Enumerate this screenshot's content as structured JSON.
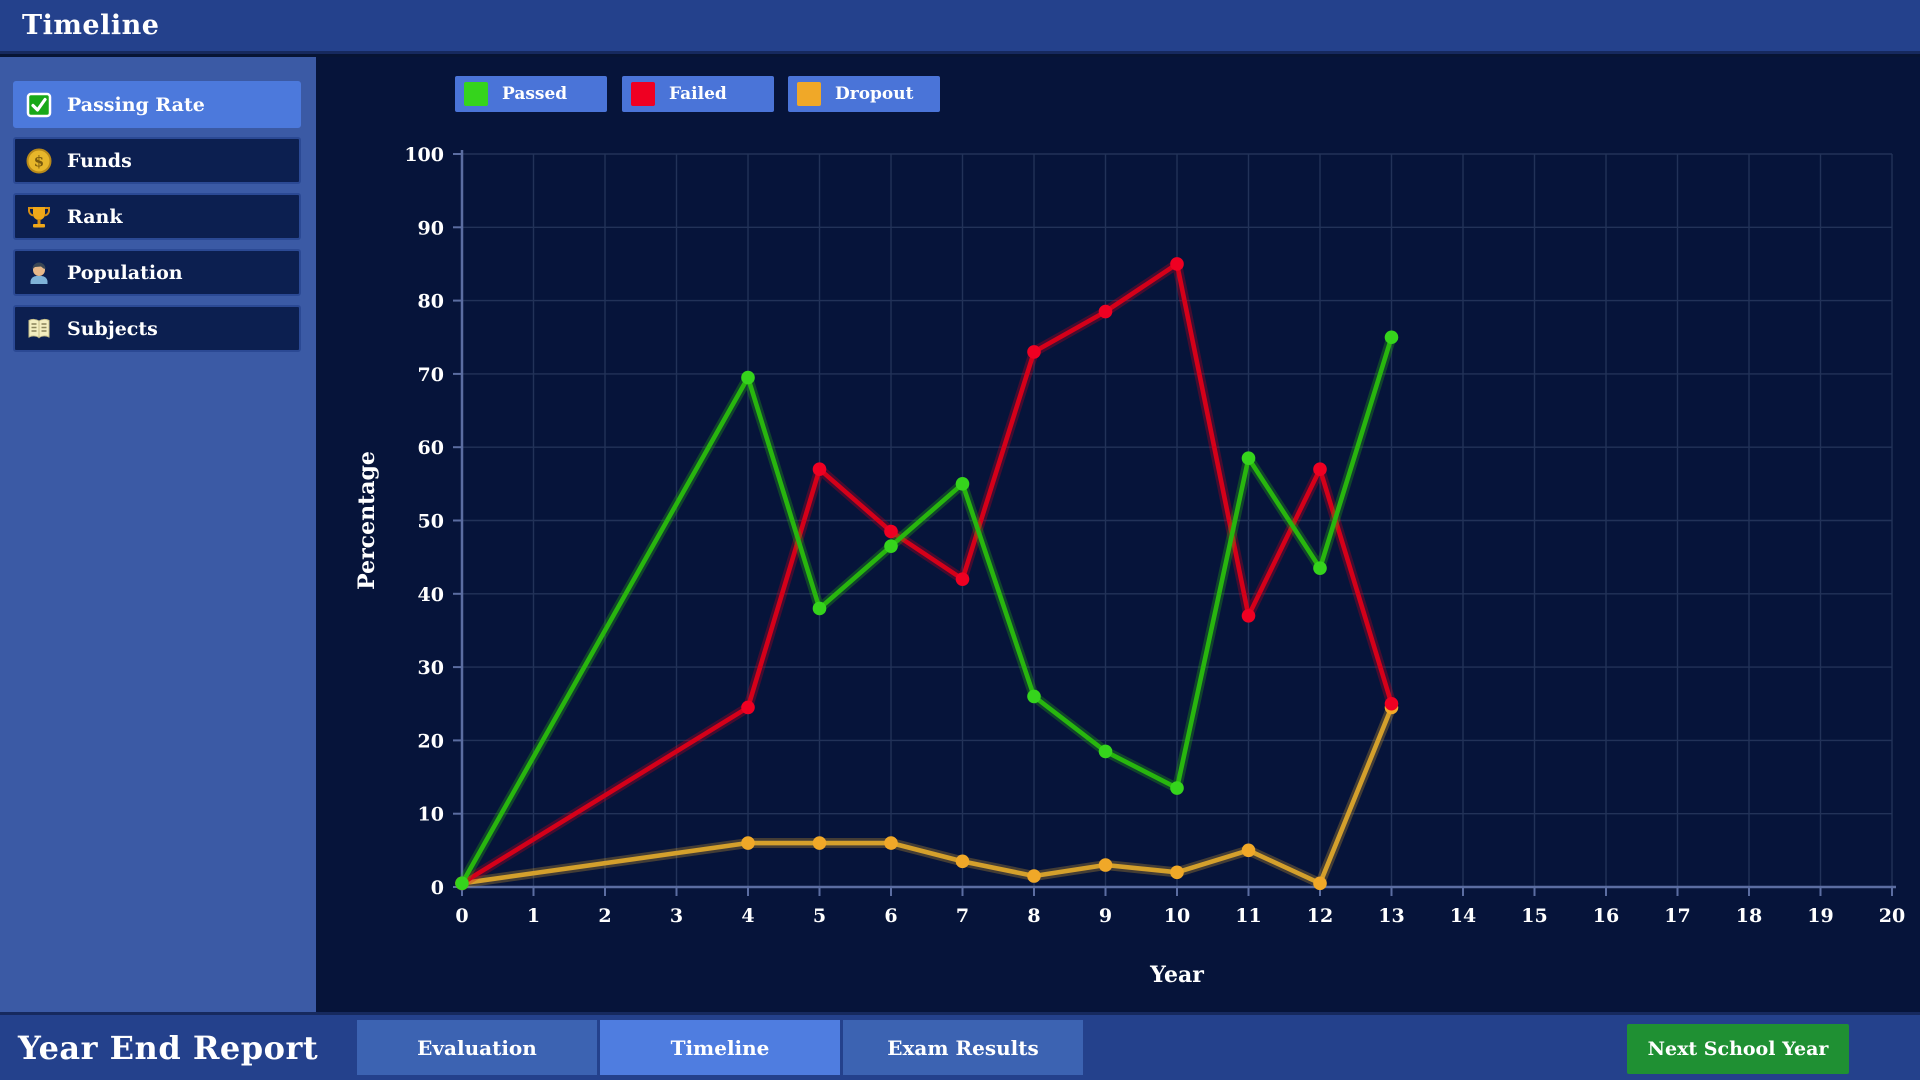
{
  "header": {
    "title": "Timeline"
  },
  "sidebar": {
    "items": [
      {
        "label": "Passing Rate",
        "icon": "check-square-icon",
        "active": true
      },
      {
        "label": "Funds",
        "icon": "coin-icon",
        "active": false
      },
      {
        "label": "Rank",
        "icon": "trophy-icon",
        "active": false
      },
      {
        "label": "Population",
        "icon": "person-icon",
        "active": false
      },
      {
        "label": "Subjects",
        "icon": "book-icon",
        "active": false
      }
    ]
  },
  "chart_data": {
    "type": "line",
    "title": "",
    "xlabel": "Year",
    "ylabel": "Percentage",
    "xlim": [
      0,
      20
    ],
    "ylim": [
      0,
      100
    ],
    "x_tick_step": 1,
    "y_tick_step": 10,
    "grid": true,
    "legend_position": "top",
    "x": [
      0,
      4,
      5,
      6,
      7,
      8,
      9,
      10,
      11,
      12,
      13
    ],
    "series": [
      {
        "name": "Passed",
        "color": "#28b60e",
        "marker_color": "#35d41c",
        "values": [
          0.5,
          69.5,
          38,
          46.5,
          55,
          26,
          18.5,
          13.5,
          58.5,
          43.5,
          75
        ]
      },
      {
        "name": "Failed",
        "color": "#d50019",
        "marker_color": "#ef0022",
        "values": [
          0.5,
          24.5,
          57,
          48.5,
          42,
          73,
          78.5,
          85,
          37,
          57,
          25
        ]
      },
      {
        "name": "Dropout",
        "color": "#d4a02c",
        "marker_color": "#f0a828",
        "values": [
          0.5,
          6,
          6,
          6,
          3.5,
          1.5,
          3,
          2,
          5,
          0.5,
          24.5
        ]
      }
    ]
  },
  "footer": {
    "title": "Year End Report",
    "tabs": [
      {
        "label": "Evaluation",
        "active": false
      },
      {
        "label": "Timeline",
        "active": true
      },
      {
        "label": "Exam Results",
        "active": false
      }
    ],
    "next_button": "Next School Year"
  },
  "colors": {
    "accent_blue": "#4a74d8",
    "panel_blue": "#3b5aa5",
    "bar_blue": "#24418c",
    "chart_bg": "#06143a",
    "gridline": "#223258",
    "axis": "#5b6da1",
    "next_green": "#1f9033"
  }
}
